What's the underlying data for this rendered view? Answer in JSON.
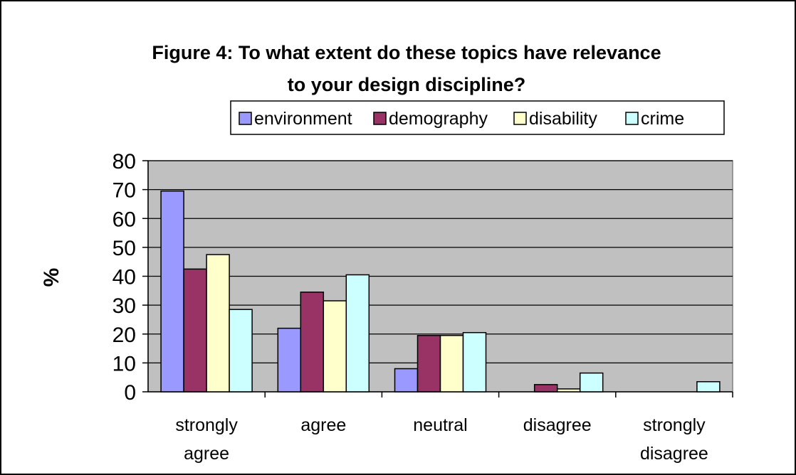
{
  "chart_data": {
    "type": "bar",
    "title_lines": [
      "Figure 4: To what extent do these topics have relevance",
      "to your design discipline?"
    ],
    "categories": [
      [
        "strongly",
        "agree"
      ],
      [
        "agree"
      ],
      [
        "neutral"
      ],
      [
        "disagree"
      ],
      [
        "strongly",
        "disagree"
      ]
    ],
    "series": [
      {
        "name": "environment",
        "color": "#9999ff",
        "values": [
          69.5,
          22,
          8,
          0,
          0
        ]
      },
      {
        "name": "demography",
        "color": "#993366",
        "values": [
          42.5,
          34.5,
          19.5,
          2.5,
          0
        ]
      },
      {
        "name": "disability",
        "color": "#ffffcc",
        "values": [
          47.5,
          31.5,
          19.5,
          1,
          0
        ]
      },
      {
        "name": "crime",
        "color": "#ccffff",
        "values": [
          28.5,
          40.5,
          20.5,
          6.5,
          3.5
        ]
      }
    ],
    "ylabel": "%",
    "ylim": [
      0,
      80
    ],
    "yticks": [
      "0",
      "10",
      "20",
      "30",
      "40",
      "50",
      "60",
      "70",
      "80"
    ],
    "plot_background": "#c0c0c0",
    "grid": true,
    "legend_position": "top"
  }
}
